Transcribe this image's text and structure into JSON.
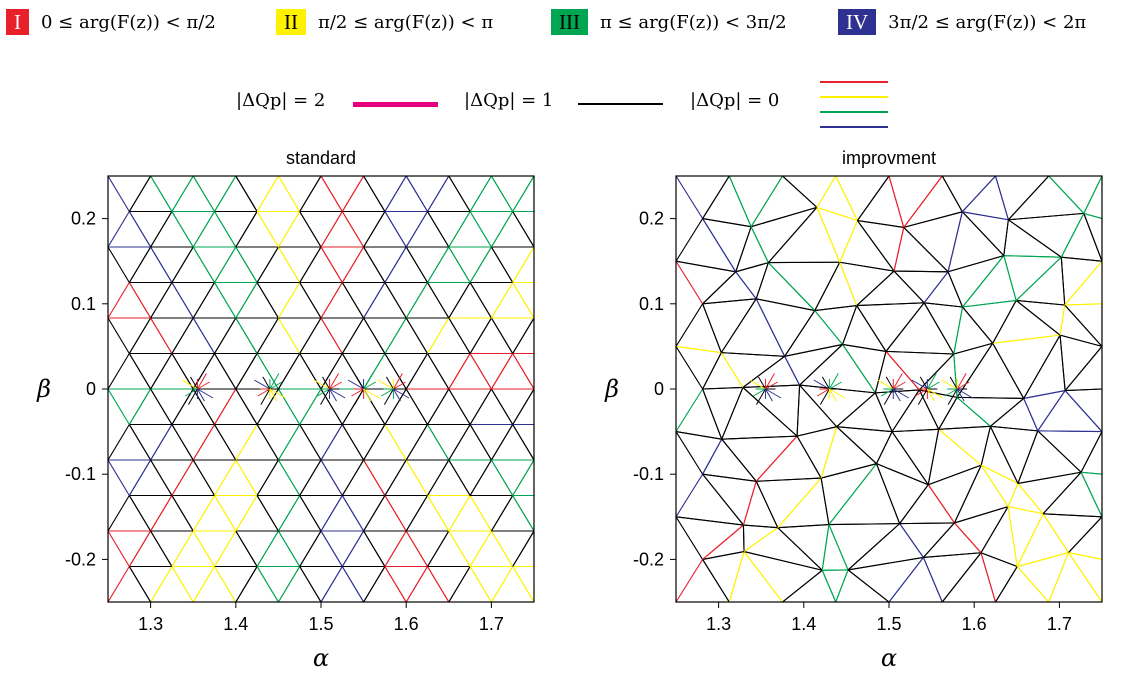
{
  "quadrant_legend": [
    {
      "numeral": "I",
      "range": "0 ≤ arg(F(z)) < π/2",
      "color": "#e8202a",
      "text_color": "#ffffff"
    },
    {
      "numeral": "II",
      "range": "π/2 ≤ arg(F(z)) < π",
      "color": "#fff200",
      "text_color": "#000000"
    },
    {
      "numeral": "III",
      "range": "π ≤ arg(F(z)) < 3π/2",
      "color": "#00a651",
      "text_color": "#000000"
    },
    {
      "numeral": "IV",
      "range": "3π/2 ≤ arg(F(z)) < 2π",
      "color": "#2e3192",
      "text_color": "#ffffff"
    }
  ],
  "delta_legend": [
    {
      "label": "|ΔQp| = 2",
      "colors": [
        "#e6007e"
      ]
    },
    {
      "label": "|ΔQp| = 1",
      "colors": [
        "#000000"
      ]
    },
    {
      "label": "|ΔQp| = 0",
      "colors": [
        "#e8202a",
        "#fff200",
        "#00a651",
        "#2e3192"
      ]
    }
  ],
  "chart_data": [
    {
      "type": "mesh",
      "title": "standard",
      "xlabel": "α",
      "ylabel": "β",
      "xlim": [
        1.25,
        1.75
      ],
      "ylim": [
        -0.25,
        0.25
      ],
      "xticks": [
        "1.3",
        "1.4",
        "1.5",
        "1.6",
        "1.7"
      ],
      "yticks": [
        "0.2",
        "0.1",
        "0",
        "-0.1",
        "-0.2"
      ],
      "roots": [
        [
          1.355,
          0
        ],
        [
          1.44,
          0
        ],
        [
          1.51,
          0
        ],
        [
          1.55,
          0
        ],
        [
          1.585,
          0
        ]
      ]
    },
    {
      "type": "mesh",
      "title": "improvment",
      "xlabel": "α",
      "ylabel": "β",
      "xlim": [
        1.25,
        1.75
      ],
      "ylim": [
        -0.25,
        0.25
      ],
      "xticks": [
        "1.3",
        "1.4",
        "1.5",
        "1.6",
        "1.7"
      ],
      "yticks": [
        "0.2",
        "0.1",
        "0",
        "-0.1",
        "-0.2"
      ],
      "roots": [
        [
          1.355,
          0
        ],
        [
          1.43,
          0
        ],
        [
          1.505,
          0
        ],
        [
          1.545,
          0
        ],
        [
          1.58,
          0
        ]
      ]
    }
  ]
}
